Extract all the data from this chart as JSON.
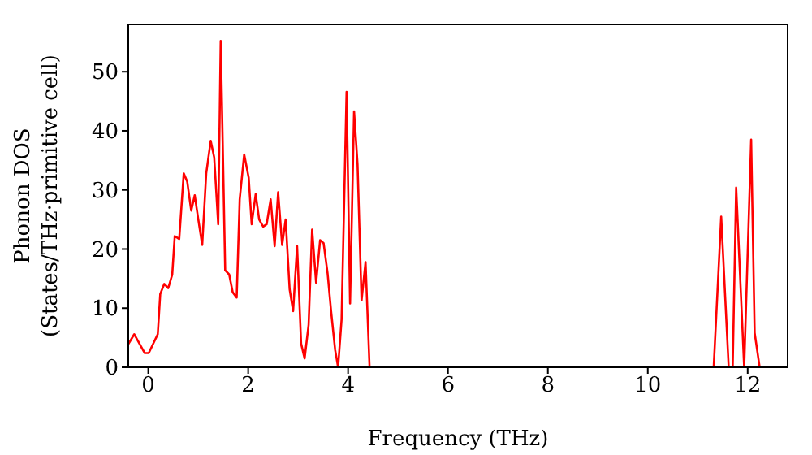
{
  "chart_data": {
    "type": "line",
    "xlabel": "Frequency (THz)",
    "ylabel": "Phonon DOS\n(States/THz·primitive cell)",
    "xlim": [
      -0.4,
      12.8
    ],
    "ylim": [
      0,
      58
    ],
    "xticks": [
      0,
      2,
      4,
      6,
      8,
      10,
      12
    ],
    "yticks": [
      0,
      10,
      20,
      30,
      40,
      50
    ],
    "grid": false,
    "legend": false,
    "marker": "none",
    "line_style": "solid",
    "series": [
      {
        "color": "#ff0000",
        "x": [
          -0.4,
          -0.28,
          -0.17,
          -0.07,
          0.01,
          0.19,
          0.24,
          0.32,
          0.4,
          0.48,
          0.53,
          0.62,
          0.71,
          0.78,
          0.86,
          0.93,
          1.0,
          1.08,
          1.16,
          1.25,
          1.32,
          1.4,
          1.45,
          1.54,
          1.62,
          1.69,
          1.77,
          1.83,
          1.92,
          2.01,
          2.07,
          2.15,
          2.22,
          2.3,
          2.37,
          2.45,
          2.53,
          2.6,
          2.68,
          2.75,
          2.83,
          2.9,
          2.98,
          3.06,
          3.13,
          3.21,
          3.28,
          3.36,
          3.44,
          3.51,
          3.59,
          3.66,
          3.74,
          3.8,
          3.87,
          3.97,
          4.04,
          4.12,
          4.19,
          4.27,
          4.35,
          4.43,
          11.32,
          11.47,
          11.62,
          11.7,
          11.77,
          11.93,
          12.07,
          12.14,
          12.24
        ],
        "values": [
          3.9,
          5.6,
          3.9,
          2.4,
          2.4,
          5.6,
          12.4,
          14.1,
          13.4,
          15.7,
          22.2,
          21.7,
          32.8,
          31.4,
          26.5,
          29.1,
          25.1,
          20.7,
          32.8,
          38.3,
          35.5,
          24.2,
          55.2,
          16.4,
          15.7,
          12.7,
          11.8,
          28.4,
          36.0,
          32.1,
          24.2,
          29.3,
          25.0,
          23.8,
          24.2,
          28.4,
          20.5,
          29.6,
          20.7,
          25.0,
          13.2,
          9.5,
          20.5,
          4.0,
          1.5,
          7.2,
          23.3,
          14.3,
          21.5,
          21.0,
          15.9,
          9.5,
          3.0,
          0,
          8.1,
          46.6,
          10.8,
          43.3,
          34.3,
          11.3,
          17.8,
          0,
          0,
          25.5,
          0,
          0,
          30.4,
          0,
          38.5,
          5.8,
          0
        ]
      }
    ]
  }
}
